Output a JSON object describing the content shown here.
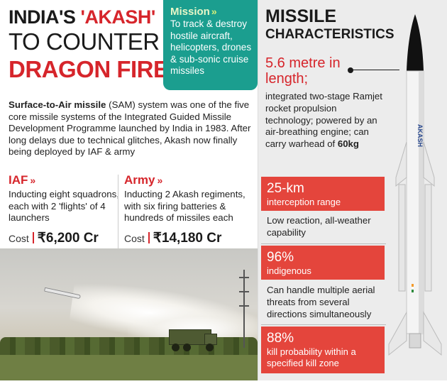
{
  "headline": {
    "line1_prefix": "INDIA'S ",
    "line1_highlight": "'AKASH'",
    "line2": "TO COUNTER",
    "line3": "DRAGON FIRE"
  },
  "mission": {
    "title": "Mission",
    "text": "To track & destroy hostile aircraft, helicopters, drones & sub-sonic cruise missiles"
  },
  "intro": {
    "bold": "Surface-to-Air missile",
    "rest": " (SAM) system was one of the five core missile systems of the Integrated Guided Missile Development Programme launched by India in 1983. After long delays due to technical glitches, Akash now finally being deployed by IAF & army"
  },
  "iaf": {
    "title": "IAF",
    "text": "Inducting eight squadrons, each with 2 'flights' of 4 launchers",
    "cost_label": "Cost",
    "cost_value": "₹6,200 Cr"
  },
  "army": {
    "title": "Army",
    "text": "Inducting 2 Akash regiments, with six firing batteries & hundreds of missiles each",
    "cost_label": "Cost",
    "cost_value": "₹14,180 Cr"
  },
  "characteristics": {
    "title_line1": "MISSILE",
    "title_line2": "CHARACTERISTICS",
    "length_value": "5.6 metre in length;",
    "tech_text_prefix": "integrated two-stage Ramjet rocket propulsion technology; powered by an air-breathing engine; can carry warhead of ",
    "warhead": "60kg",
    "stats": [
      {
        "big": "25-km",
        "small": "interception range",
        "note": "Low reaction, all-weather capability"
      },
      {
        "big": "96%",
        "small": "indigenous",
        "note": "Can handle multiple aerial threats from several directions simultaneously"
      },
      {
        "big": "88%",
        "small": "kill probability within a specified kill zone",
        "note": ""
      }
    ],
    "missile_label": "AKASH"
  },
  "colors": {
    "red": "#d6252b",
    "teal": "#1b9e8f",
    "stat_box": "#e4453c"
  }
}
